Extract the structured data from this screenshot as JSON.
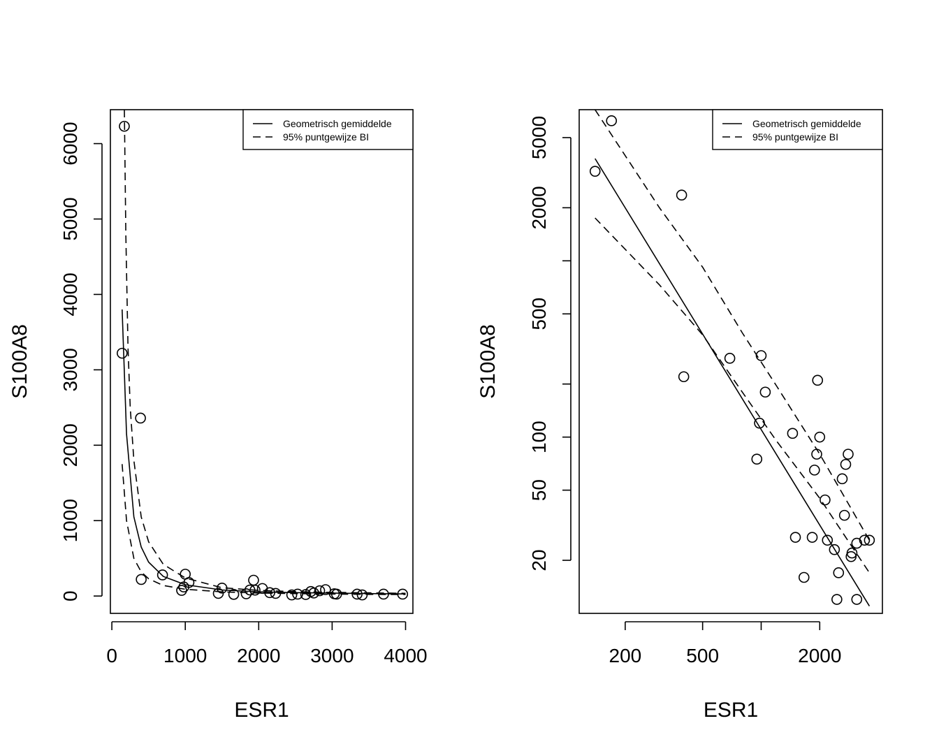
{
  "chart_data": [
    {
      "type": "scatter",
      "title": "",
      "xlabel": "ESR1",
      "ylabel": "S100A8",
      "x_scale": "linear",
      "y_scale": "linear",
      "xlim": [
        -20,
        4100
      ],
      "ylim": [
        -230,
        6450
      ],
      "x_ticks": [
        0,
        1000,
        2000,
        3000,
        4000
      ],
      "x_tick_labels": [
        "0",
        "1000",
        "2000",
        "3000",
        "4000"
      ],
      "y_ticks": [
        0,
        1000,
        2000,
        3000,
        4000,
        5000,
        6000
      ],
      "y_tick_labels": [
        "0",
        "1000",
        "2000",
        "3000",
        "4000",
        "5000",
        "6000"
      ],
      "grid": false,
      "legend_position": "top-right",
      "legend": [
        {
          "label": "Geometrisch gemiddelde",
          "style": "solid"
        },
        {
          "label": "95% puntgewijze BI",
          "style": "dashed"
        }
      ],
      "points": [
        [
          140,
          3220
        ],
        [
          170,
          6230
        ],
        [
          390,
          2360
        ],
        [
          400,
          220
        ],
        [
          690,
          280
        ],
        [
          950,
          75
        ],
        [
          980,
          120
        ],
        [
          1000,
          290
        ],
        [
          1050,
          180
        ],
        [
          1450,
          35
        ],
        [
          1500,
          105
        ],
        [
          1660,
          22
        ],
        [
          1830,
          30
        ],
        [
          1880,
          80
        ],
        [
          1930,
          210
        ],
        [
          1950,
          78
        ],
        [
          2050,
          100
        ],
        [
          2150,
          45
        ],
        [
          2230,
          35
        ],
        [
          2450,
          15
        ],
        [
          2530,
          25
        ],
        [
          2640,
          20
        ],
        [
          2710,
          60
        ],
        [
          2750,
          40
        ],
        [
          2830,
          70
        ],
        [
          2910,
          85
        ],
        [
          3030,
          30
        ],
        [
          3060,
          25
        ],
        [
          3340,
          25
        ],
        [
          3410,
          15
        ],
        [
          3700,
          25
        ],
        [
          3960,
          25
        ]
      ],
      "fit_line": {
        "name": "Geometrisch gemiddelde",
        "x": [
          140,
          200,
          300,
          400,
          500,
          700,
          1000,
          1500,
          2000,
          2500,
          3000,
          3500,
          4000
        ],
        "y": [
          3800,
          2150,
          1050,
          650,
          450,
          260,
          150,
          80,
          55,
          45,
          40,
          32,
          28
        ]
      },
      "ci_lower": {
        "name": "95% puntgewijze BI",
        "x": [
          140,
          200,
          300,
          400,
          500,
          700,
          1000,
          1500,
          2000,
          2500,
          3000,
          3500,
          4000
        ],
        "y": [
          1750,
          1000,
          500,
          320,
          230,
          140,
          90,
          55,
          40,
          32,
          27,
          22,
          20
        ]
      },
      "ci_upper": {
        "name": "95% puntgewijze BI",
        "x": [
          170,
          190,
          220,
          250,
          300,
          400,
          500,
          700,
          1000,
          1500,
          2000,
          2500,
          3000,
          3500,
          4000
        ],
        "y": [
          6450,
          4800,
          3300,
          2500,
          1800,
          1050,
          720,
          420,
          240,
          110,
          75,
          58,
          48,
          42,
          36
        ]
      }
    },
    {
      "type": "scatter",
      "title": "",
      "xlabel": "ESR1",
      "ylabel": "S100A8",
      "x_scale": "log",
      "y_scale": "log",
      "xlim": [
        116,
        4200
      ],
      "ylim": [
        10,
        7200
      ],
      "x_ticks": [
        200,
        500,
        1000,
        2000
      ],
      "x_tick_labels": [
        "200",
        "500",
        "",
        "2000"
      ],
      "y_ticks": [
        20,
        50,
        100,
        200,
        500,
        1000,
        2000,
        5000
      ],
      "y_tick_labels": [
        "20",
        "50",
        "100",
        "",
        "500",
        "",
        "2000",
        "5000"
      ],
      "grid": false,
      "legend_position": "top-right",
      "legend": [
        {
          "label": "Geometrisch gemiddelde",
          "style": "solid"
        },
        {
          "label": "95% puntgewijze BI",
          "style": "dashed"
        }
      ],
      "points": [
        [
          140,
          3220
        ],
        [
          170,
          6230
        ],
        [
          390,
          2360
        ],
        [
          400,
          220
        ],
        [
          690,
          280
        ],
        [
          950,
          75
        ],
        [
          980,
          120
        ],
        [
          1000,
          290
        ],
        [
          1050,
          180
        ],
        [
          1450,
          105
        ],
        [
          1500,
          27
        ],
        [
          1660,
          16
        ],
        [
          1830,
          27
        ],
        [
          1880,
          65
        ],
        [
          1930,
          80
        ],
        [
          1950,
          210
        ],
        [
          2000,
          100
        ],
        [
          2130,
          44
        ],
        [
          2190,
          26
        ],
        [
          2380,
          23
        ],
        [
          2450,
          12
        ],
        [
          2500,
          17
        ],
        [
          2610,
          58
        ],
        [
          2680,
          36
        ],
        [
          2720,
          70
        ],
        [
          2800,
          80
        ],
        [
          2900,
          21
        ],
        [
          2930,
          22
        ],
        [
          3100,
          12
        ],
        [
          3100,
          25
        ],
        [
          3400,
          26
        ],
        [
          3600,
          26
        ]
      ],
      "fit_line": {
        "name": "Geometrisch gemiddelde",
        "x": [
          140,
          3600
        ],
        "y": [
          3800,
          11
        ]
      },
      "ci_lower": {
        "name": "95% puntgewijze BI",
        "x": [
          140,
          300,
          500,
          800,
          1200,
          2000,
          3600
        ],
        "y": [
          1750,
          730,
          380,
          180,
          95,
          45,
          17
        ]
      },
      "ci_upper": {
        "name": "95% puntgewijze BI",
        "x": [
          140,
          300,
          500,
          800,
          1200,
          2000,
          3600
        ],
        "y": [
          7200,
          2000,
          920,
          390,
          195,
          80,
          26
        ]
      }
    }
  ]
}
